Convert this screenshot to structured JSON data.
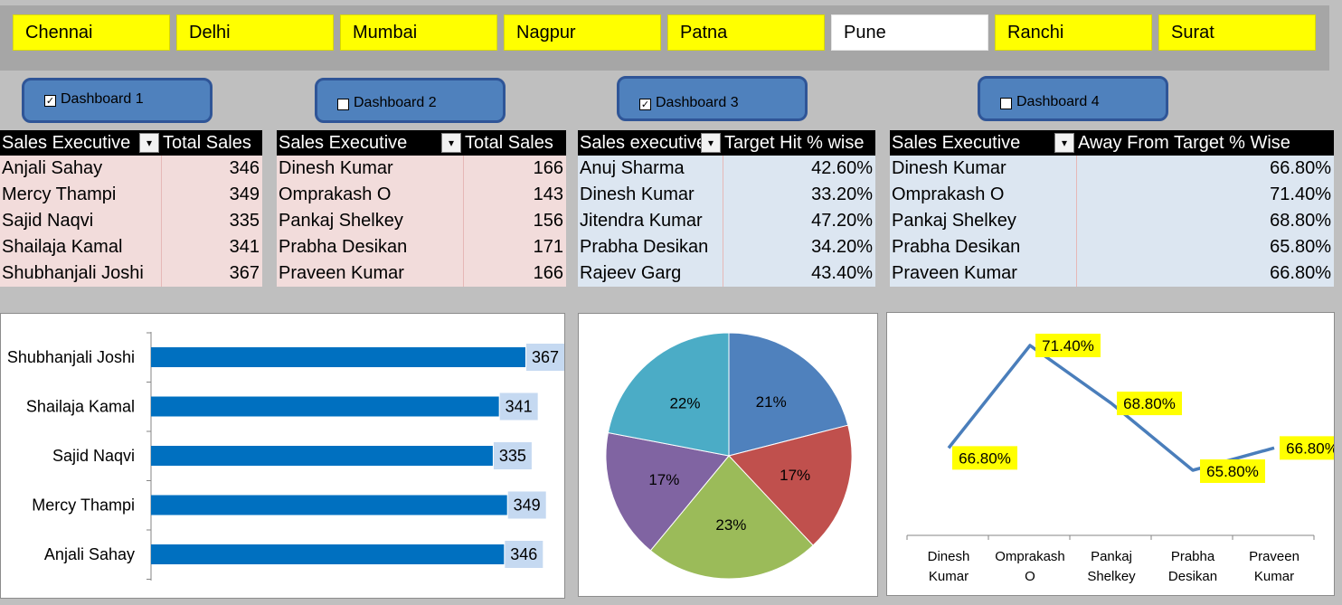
{
  "slicer": {
    "cities": [
      "Chennai",
      "Delhi",
      "Mumbai",
      "Nagpur",
      "Patna",
      "Pune",
      "Ranchi",
      "Surat"
    ],
    "selected": "Pune"
  },
  "checkboxes": [
    {
      "label": "Dashboard 1",
      "checked": true
    },
    {
      "label": "Dashboard 2",
      "checked": false
    },
    {
      "label": "Dashboard 3",
      "checked": true
    },
    {
      "label": "Dashboard 4",
      "checked": false
    }
  ],
  "tables": [
    {
      "headers": [
        "Sales Executive",
        "Total Sales"
      ],
      "rows": [
        [
          "Anjali Sahay",
          "346"
        ],
        [
          "Mercy Thampi",
          "349"
        ],
        [
          "Sajid Naqvi",
          "335"
        ],
        [
          "Shailaja Kamal",
          "341"
        ],
        [
          "Shubhanjali Joshi",
          "367"
        ]
      ]
    },
    {
      "headers": [
        "Sales Executive",
        "Total Sales"
      ],
      "rows": [
        [
          "Dinesh Kumar",
          "166"
        ],
        [
          "Omprakash O",
          "143"
        ],
        [
          "Pankaj Shelkey",
          "156"
        ],
        [
          "Prabha Desikan",
          "171"
        ],
        [
          "Praveen Kumar",
          "166"
        ]
      ]
    },
    {
      "headers": [
        "Sales executive",
        "Target Hit % wise"
      ],
      "rows": [
        [
          "Anuj Sharma",
          "42.60%"
        ],
        [
          "Dinesh Kumar",
          "33.20%"
        ],
        [
          "Jitendra Kumar",
          "47.20%"
        ],
        [
          "Prabha Desikan",
          "34.20%"
        ],
        [
          "Rajeev Garg",
          "43.40%"
        ]
      ]
    },
    {
      "headers": [
        "Sales Executive",
        "Away From Target % Wise"
      ],
      "rows": [
        [
          "Dinesh Kumar",
          "66.80%"
        ],
        [
          "Omprakash O",
          "71.40%"
        ],
        [
          "Pankaj Shelkey",
          "68.80%"
        ],
        [
          "Prabha Desikan",
          "65.80%"
        ],
        [
          "Praveen Kumar",
          "66.80%"
        ]
      ]
    }
  ],
  "colors": {
    "bar": "#0070c0",
    "bar_label_bg": "#c5d9f1",
    "line": "#4a7ebb",
    "label_yellow": "#ffff00",
    "pie": [
      "#4f81bd",
      "#c0504d",
      "#9bbb59",
      "#8064a2",
      "#4bacc6"
    ]
  },
  "chart_data": [
    {
      "type": "bar",
      "orientation": "horizontal",
      "categories": [
        "Shubhanjali Joshi",
        "Shailaja Kamal",
        "Sajid Naqvi",
        "Mercy Thampi",
        "Anjali Sahay"
      ],
      "values": [
        367,
        341,
        335,
        349,
        346
      ],
      "data_labels": [
        "367",
        "341",
        "335",
        "349",
        "346"
      ],
      "grid": false
    },
    {
      "type": "pie",
      "values": [
        21,
        17,
        23,
        17,
        22
      ],
      "labels": [
        "21%",
        "17%",
        "23%",
        "17%",
        "22%"
      ]
    },
    {
      "type": "line",
      "categories": [
        "Dinesh Kumar",
        "Omprakash O",
        "Pankaj Shelkey",
        "Prabha Desikan",
        "Praveen Kumar"
      ],
      "values": [
        66.8,
        71.4,
        68.8,
        65.8,
        66.8
      ],
      "data_labels": [
        "66.80%",
        "71.40%",
        "68.80%",
        "65.80%",
        "66.80%"
      ],
      "grid": false
    }
  ]
}
